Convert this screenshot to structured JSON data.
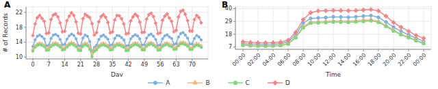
{
  "chart_data": [
    {
      "type": "line",
      "title": "A",
      "x_label": "Day",
      "y_label": "# of Records",
      "legend": "bottom",
      "grid": true,
      "x": [
        0,
        1,
        2,
        3,
        4,
        5,
        6,
        7,
        8,
        9,
        10,
        11,
        12,
        13,
        14,
        15,
        16,
        17,
        18,
        19,
        20,
        21,
        22,
        23,
        24,
        25,
        26,
        27,
        28,
        29,
        30,
        31,
        32,
        33,
        34,
        35,
        36,
        37,
        38,
        39,
        40,
        41,
        42,
        43,
        44,
        45,
        46,
        47,
        48,
        49,
        50,
        51,
        52,
        53,
        54,
        55,
        56,
        57,
        58,
        59,
        60,
        61,
        62,
        63,
        64,
        65,
        66,
        67,
        68,
        69,
        70,
        71,
        72,
        73,
        74
      ],
      "xlim": [
        -3,
        77
      ],
      "xticks": [
        0,
        7,
        14,
        21,
        28,
        35,
        42,
        49,
        56,
        63,
        70
      ],
      "ylim": [
        9.5,
        23.5
      ],
      "yticks": [
        10,
        14,
        18,
        22
      ],
      "series": [
        {
          "name": "A",
          "color": "#7eb0e0",
          "marker": "circle",
          "values": [
            12.8,
            14.6,
            15.6,
            15.9,
            15.5,
            14.9,
            13.0,
            13.2,
            15.0,
            15.9,
            16.1,
            15.7,
            14.7,
            13.3,
            13.4,
            14.8,
            15.7,
            16.2,
            15.8,
            14.9,
            13.1,
            12.9,
            15.1,
            15.9,
            15.6,
            14.2,
            11.5,
            12.6,
            13.2,
            14.7,
            15.6,
            15.9,
            15.4,
            14.8,
            13.2,
            13.3,
            15.0,
            15.8,
            15.7,
            15.2,
            14.6,
            13.0,
            13.1,
            14.9,
            15.6,
            16.0,
            15.7,
            14.9,
            13.2,
            13.3,
            15.1,
            15.9,
            16.2,
            15.6,
            14.7,
            13.1,
            13.2,
            14.9,
            15.7,
            16.0,
            15.4,
            15.0,
            13.4,
            13.6,
            15.4,
            16.3,
            16.6,
            15.9,
            15.1,
            13.5,
            13.5,
            15.0,
            15.8,
            15.4,
            14.6
          ]
        },
        {
          "name": "B",
          "color": "#f7b485",
          "marker": "triangle",
          "values": [
            12.1,
            13.0,
            13.5,
            13.7,
            13.5,
            13.2,
            12.3,
            12.4,
            13.2,
            13.6,
            13.8,
            13.5,
            13.1,
            12.4,
            12.5,
            13.1,
            13.6,
            13.9,
            13.6,
            13.2,
            12.3,
            12.2,
            13.3,
            13.7,
            13.5,
            12.8,
            11.2,
            12.1,
            12.4,
            13.1,
            13.5,
            13.7,
            13.4,
            13.1,
            12.4,
            12.5,
            13.2,
            13.6,
            13.6,
            13.3,
            13.0,
            12.2,
            12.3,
            13.1,
            13.5,
            13.8,
            13.6,
            13.2,
            12.4,
            12.4,
            13.3,
            13.7,
            13.9,
            13.5,
            13.1,
            12.3,
            12.4,
            13.2,
            13.6,
            13.8,
            13.4,
            13.2,
            12.5,
            12.6,
            13.4,
            13.9,
            14.0,
            13.7,
            13.3,
            12.5,
            12.5,
            13.2,
            13.6,
            13.4,
            13.0
          ]
        },
        {
          "name": "C",
          "color": "#7fd67f",
          "marker": "square",
          "values": [
            11.6,
            12.6,
            13.1,
            13.3,
            13.1,
            12.8,
            11.8,
            11.9,
            12.8,
            13.2,
            13.4,
            13.1,
            12.7,
            11.9,
            12.0,
            12.7,
            13.2,
            13.5,
            13.2,
            12.8,
            11.8,
            11.7,
            12.9,
            13.3,
            13.0,
            12.1,
            10.1,
            11.5,
            11.9,
            12.7,
            13.1,
            13.3,
            13.0,
            12.7,
            11.9,
            12.0,
            12.8,
            13.2,
            13.2,
            12.9,
            12.6,
            11.7,
            11.8,
            12.7,
            13.1,
            13.4,
            13.2,
            12.8,
            11.9,
            11.9,
            12.9,
            13.3,
            13.5,
            13.1,
            12.7,
            11.8,
            11.9,
            12.8,
            13.2,
            13.4,
            13.0,
            12.8,
            12.0,
            12.1,
            13.0,
            13.5,
            13.6,
            13.3,
            12.9,
            12.0,
            12.0,
            12.8,
            13.2,
            13.0,
            12.6
          ]
        },
        {
          "name": "D",
          "color": "#f28686",
          "marker": "cross",
          "values": [
            15.8,
            18.9,
            20.6,
            21.2,
            20.4,
            19.6,
            16.3,
            16.5,
            20.1,
            21.3,
            21.6,
            20.8,
            19.2,
            16.8,
            16.9,
            19.8,
            21.0,
            21.9,
            21.2,
            19.5,
            16.4,
            16.2,
            20.3,
            21.5,
            21.0,
            20.6,
            19.0,
            15.9,
            16.6,
            19.5,
            20.9,
            21.4,
            20.7,
            19.3,
            16.5,
            16.8,
            20.0,
            21.2,
            21.1,
            20.3,
            18.9,
            16.2,
            16.4,
            19.7,
            20.8,
            21.5,
            21.0,
            19.4,
            16.6,
            16.7,
            20.2,
            21.4,
            21.8,
            20.9,
            19.1,
            16.3,
            16.5,
            19.9,
            21.0,
            21.6,
            20.5,
            19.6,
            16.8,
            17.2,
            20.8,
            22.3,
            22.6,
            21.5,
            19.8,
            17.0,
            17.0,
            20.1,
            21.2,
            20.6,
            19.2
          ]
        }
      ]
    },
    {
      "type": "line",
      "title": "B",
      "x_label": "Time",
      "grid": true,
      "x": [
        0,
        1,
        2,
        3,
        4,
        5,
        6,
        7,
        8,
        9,
        10,
        11,
        12,
        13,
        14,
        15,
        16,
        17,
        18,
        19,
        20,
        21,
        22,
        23,
        24
      ],
      "xlim": [
        -1,
        25
      ],
      "xticks": [
        {
          "value": 0,
          "label": "00:00"
        },
        {
          "value": 2,
          "label": "02:00"
        },
        {
          "value": 4,
          "label": "04:00"
        },
        {
          "value": 6,
          "label": "06:00"
        },
        {
          "value": 8,
          "label": "08:00"
        },
        {
          "value": 10,
          "label": "10:00"
        },
        {
          "value": 12,
          "label": "12:00"
        },
        {
          "value": 14,
          "label": "14:00"
        },
        {
          "value": 16,
          "label": "16:00"
        },
        {
          "value": 18,
          "label": "18:00"
        },
        {
          "value": 20,
          "label": "20:00"
        },
        {
          "value": 22,
          "label": "22:00"
        },
        {
          "value": 24,
          "label": "00:00"
        }
      ],
      "ylim": [
        5,
        41.5
      ],
      "yticks": [
        7,
        18,
        29,
        40
      ],
      "series": [
        {
          "name": "A",
          "color": "#7eb0e0",
          "marker": "circle",
          "values": [
            10.0,
            9.6,
            9.4,
            9.3,
            9.4,
            9.8,
            11.3,
            17.5,
            27.5,
            31.5,
            32.0,
            32.3,
            33.0,
            32.8,
            32.5,
            33.0,
            33.5,
            34.0,
            32.5,
            28.5,
            24.0,
            20.5,
            17.5,
            14.5,
            12.0
          ]
        },
        {
          "name": "B",
          "color": "#f7b485",
          "marker": "triangle",
          "values": [
            8.8,
            8.4,
            8.2,
            8.1,
            8.2,
            8.6,
            10.0,
            15.5,
            24.5,
            28.5,
            28.8,
            28.9,
            29.5,
            29.4,
            29.2,
            29.6,
            30.0,
            30.5,
            29.0,
            25.5,
            21.5,
            18.0,
            15.5,
            12.8,
            10.5
          ]
        },
        {
          "name": "C",
          "color": "#7fd67f",
          "marker": "square",
          "values": [
            8.5,
            8.1,
            7.9,
            7.8,
            7.9,
            8.3,
            9.6,
            15.0,
            23.5,
            27.5,
            27.8,
            28.0,
            28.5,
            28.4,
            28.2,
            28.6,
            29.0,
            29.6,
            28.2,
            24.8,
            20.8,
            17.5,
            15.0,
            12.3,
            10.0
          ]
        },
        {
          "name": "D",
          "color": "#f28686",
          "marker": "cross",
          "values": [
            11.5,
            11.0,
            10.7,
            10.6,
            10.7,
            11.2,
            12.8,
            19.5,
            30.5,
            36.5,
            38.0,
            38.2,
            38.4,
            38.3,
            38.2,
            38.3,
            38.8,
            39.2,
            38.0,
            33.5,
            28.0,
            24.0,
            20.5,
            17.0,
            14.5
          ]
        }
      ]
    }
  ]
}
